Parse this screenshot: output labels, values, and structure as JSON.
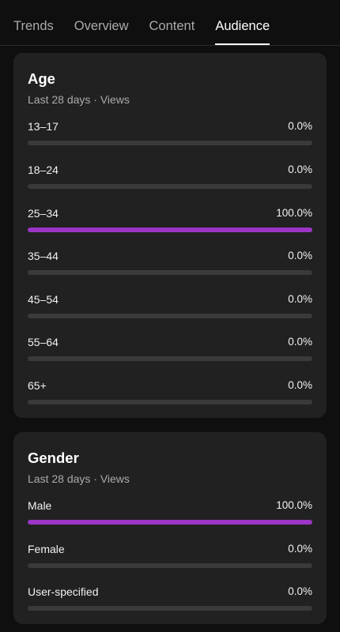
{
  "tabs": [
    {
      "label": "Trends",
      "active": false
    },
    {
      "label": "Overview",
      "active": false
    },
    {
      "label": "Content",
      "active": false
    },
    {
      "label": "Audience",
      "active": true
    }
  ],
  "age_card": {
    "title": "Age",
    "subtitle": "Last 28 days · Views",
    "rows": [
      {
        "label": "13–17",
        "value": "0.0%",
        "percent": 0
      },
      {
        "label": "18–24",
        "value": "0.0%",
        "percent": 0
      },
      {
        "label": "25–34",
        "value": "100.0%",
        "percent": 100
      },
      {
        "label": "35–44",
        "value": "0.0%",
        "percent": 0
      },
      {
        "label": "45–54",
        "value": "0.0%",
        "percent": 0
      },
      {
        "label": "55–64",
        "value": "0.0%",
        "percent": 0
      },
      {
        "label": "65+",
        "value": "0.0%",
        "percent": 0
      }
    ]
  },
  "gender_card": {
    "title": "Gender",
    "subtitle": "Last 28 days · Views",
    "rows": [
      {
        "label": "Male",
        "value": "100.0%",
        "percent": 100
      },
      {
        "label": "Female",
        "value": "0.0%",
        "percent": 0
      },
      {
        "label": "User-specified",
        "value": "0.0%",
        "percent": 0
      }
    ]
  },
  "colors": {
    "accent": "#9c35c6",
    "track": "#3a3a3a",
    "card": "#212121",
    "background": "#0f0f0f"
  }
}
